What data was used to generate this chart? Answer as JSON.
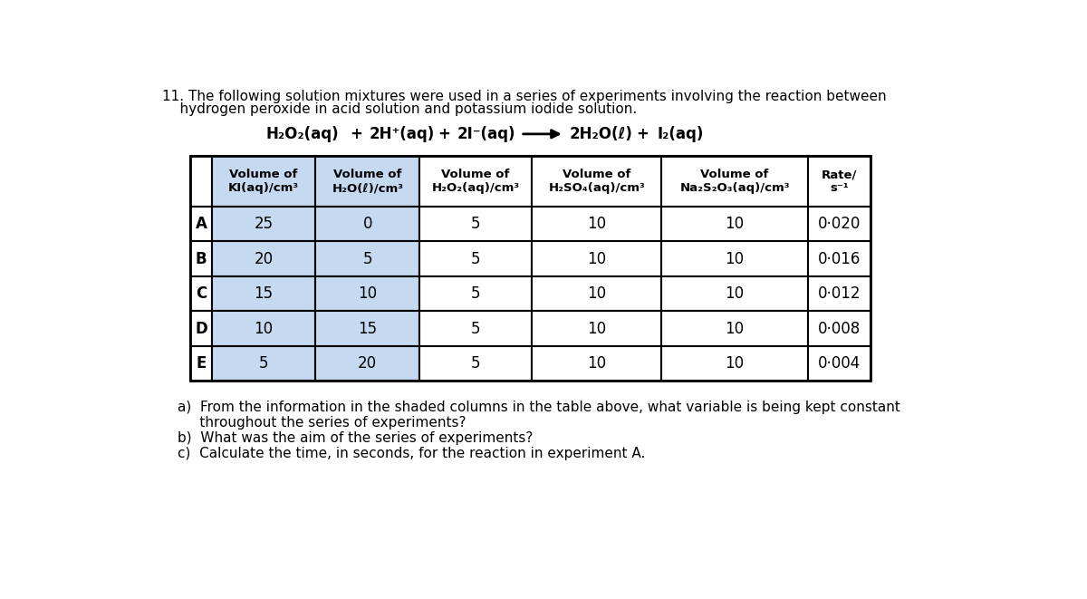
{
  "bg_color": "#ffffff",
  "title_line1": "11. The following solution mixtures were used in a series of experiments involving the reaction between",
  "title_line2": "    hydrogen peroxide in acid solution and potassium iodide solution.",
  "col_headers": [
    "Volume of\nKI(aq)/cm³",
    "Volume of\nH₂O(ℓ)/cm³",
    "Volume of\nH₂O₂(aq)/cm³",
    "Volume of\nH₂SO₄(aq)/cm³",
    "Volume of\nNa₂S₂O₃(aq)/cm³",
    "Rate/\ns⁻¹"
  ],
  "row_labels": [
    "A",
    "B",
    "C",
    "D",
    "E"
  ],
  "table_data": [
    [
      25,
      0,
      5,
      10,
      10,
      "0·020"
    ],
    [
      20,
      5,
      5,
      10,
      10,
      "0·016"
    ],
    [
      15,
      10,
      5,
      10,
      10,
      "0·012"
    ],
    [
      10,
      15,
      5,
      10,
      10,
      "0·008"
    ],
    [
      5,
      20,
      5,
      10,
      10,
      "0·004"
    ]
  ],
  "shaded_cols": [
    0,
    1
  ],
  "shade_color": "#c5d9f1",
  "questions": [
    "a)  From the information in the shaded columns in the table above, what variable is being kept constant",
    "     throughout the series of experiments?",
    "b)  What was the aim of the series of experiments?",
    "c)  Calculate the time, in seconds, for the reaction in experiment A."
  ]
}
